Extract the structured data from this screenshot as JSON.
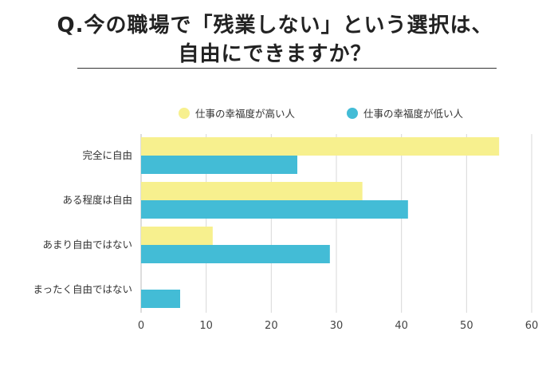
{
  "title": {
    "line1": "Q.今の職場で「残業しない」という選択は、",
    "line2": "自由にできますか？"
  },
  "chart_data": {
    "type": "bar",
    "orientation": "horizontal",
    "categories": [
      "完全に自由",
      "ある程度は自由",
      "あまり自由ではない",
      "まったく自由ではない"
    ],
    "series": [
      {
        "name": "仕事の幸福度が高い人",
        "color": "#f7f08e",
        "values": [
          55,
          34,
          11,
          0
        ]
      },
      {
        "name": "仕事の幸福度が低い人",
        "color": "#43bcd6",
        "values": [
          24,
          41,
          29,
          6
        ]
      }
    ],
    "xlim": [
      0,
      60
    ],
    "xticks": [
      0,
      10,
      20,
      30,
      40,
      50,
      60
    ],
    "grid": true,
    "legend_position": "top-right"
  }
}
